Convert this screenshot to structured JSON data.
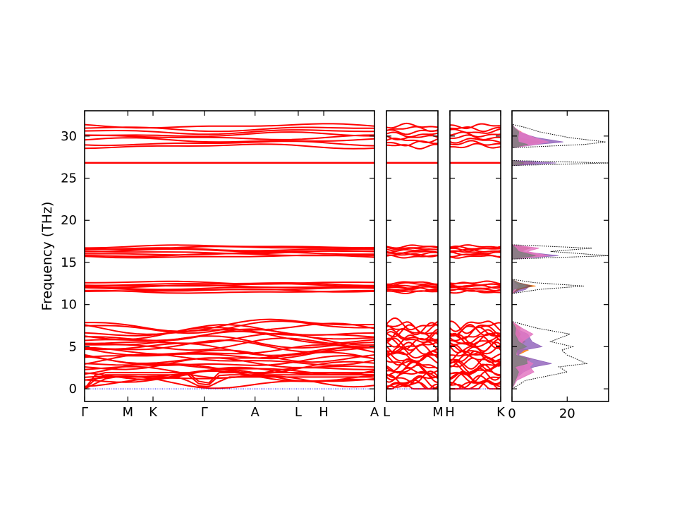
{
  "chart_data": {
    "type": "line",
    "ylabel": "Frequency (THz)",
    "ylim": [
      -1.5,
      33
    ],
    "yticks": [
      0,
      5,
      10,
      15,
      20,
      25,
      30
    ],
    "colors": {
      "bands": "#ff0000",
      "zero_line": "#0000ff",
      "dos_total": "#000000",
      "dos_partials": [
        "#1f77b4",
        "#ff7f0e",
        "#2ca02c",
        "#9467bd",
        "#8c564b",
        "#e377c2",
        "#7f7f7f"
      ]
    },
    "band_segments": [
      {
        "path": [
          "Γ",
          "M",
          "K",
          "Γ",
          "A",
          "L",
          "H",
          "A"
        ],
        "tick_labels": [
          "Γ",
          "M",
          "K",
          "Γ",
          "A",
          "L",
          "H",
          "A"
        ],
        "tick_positions": [
          0,
          0.149,
          0.236,
          0.413,
          0.588,
          0.737,
          0.825,
          1.0
        ]
      },
      {
        "path": [
          "L",
          "M"
        ],
        "tick_labels": [
          "L",
          "M"
        ],
        "tick_positions": [
          0,
          1.0
        ]
      },
      {
        "path": [
          "H",
          "K"
        ],
        "tick_labels": [
          "H",
          "K"
        ],
        "tick_positions": [
          0,
          1.0
        ]
      }
    ],
    "band_groups": [
      {
        "range_thz": [
          0,
          7.6
        ],
        "acoustic": true
      },
      {
        "range_thz": [
          11.5,
          12.6
        ]
      },
      {
        "range_thz": [
          15.7,
          16.9
        ]
      },
      {
        "range_thz": [
          26.8,
          26.8
        ]
      },
      {
        "range_thz": [
          28.8,
          31.2
        ]
      }
    ],
    "dos": {
      "xlim": [
        0,
        35
      ],
      "xticks": [
        0,
        20
      ],
      "total": [
        {
          "freq": 0.0,
          "value": 0
        },
        {
          "freq": 1.0,
          "value": 5
        },
        {
          "freq": 2.0,
          "value": 20
        },
        {
          "freq": 2.6,
          "value": 17
        },
        {
          "freq": 3.0,
          "value": 27
        },
        {
          "freq": 3.6,
          "value": 23
        },
        {
          "freq": 4.0,
          "value": 20
        },
        {
          "freq": 4.6,
          "value": 18
        },
        {
          "freq": 5.0,
          "value": 22
        },
        {
          "freq": 5.6,
          "value": 14
        },
        {
          "freq": 6.5,
          "value": 21
        },
        {
          "freq": 7.2,
          "value": 9
        },
        {
          "freq": 8.0,
          "value": 0
        },
        {
          "freq": 11.3,
          "value": 0
        },
        {
          "freq": 11.8,
          "value": 10
        },
        {
          "freq": 12.2,
          "value": 26
        },
        {
          "freq": 12.6,
          "value": 8
        },
        {
          "freq": 13.0,
          "value": 0
        },
        {
          "freq": 15.4,
          "value": 0
        },
        {
          "freq": 15.8,
          "value": 35
        },
        {
          "freq": 16.3,
          "value": 14
        },
        {
          "freq": 16.7,
          "value": 29
        },
        {
          "freq": 17.1,
          "value": 0
        },
        {
          "freq": 26.5,
          "value": 0
        },
        {
          "freq": 26.8,
          "value": 35
        },
        {
          "freq": 27.1,
          "value": 0
        },
        {
          "freq": 28.6,
          "value": 0
        },
        {
          "freq": 29.0,
          "value": 26
        },
        {
          "freq": 29.3,
          "value": 34
        },
        {
          "freq": 29.8,
          "value": 21
        },
        {
          "freq": 30.5,
          "value": 10
        },
        {
          "freq": 31.0,
          "value": 5
        },
        {
          "freq": 31.4,
          "value": 0
        }
      ]
    }
  }
}
